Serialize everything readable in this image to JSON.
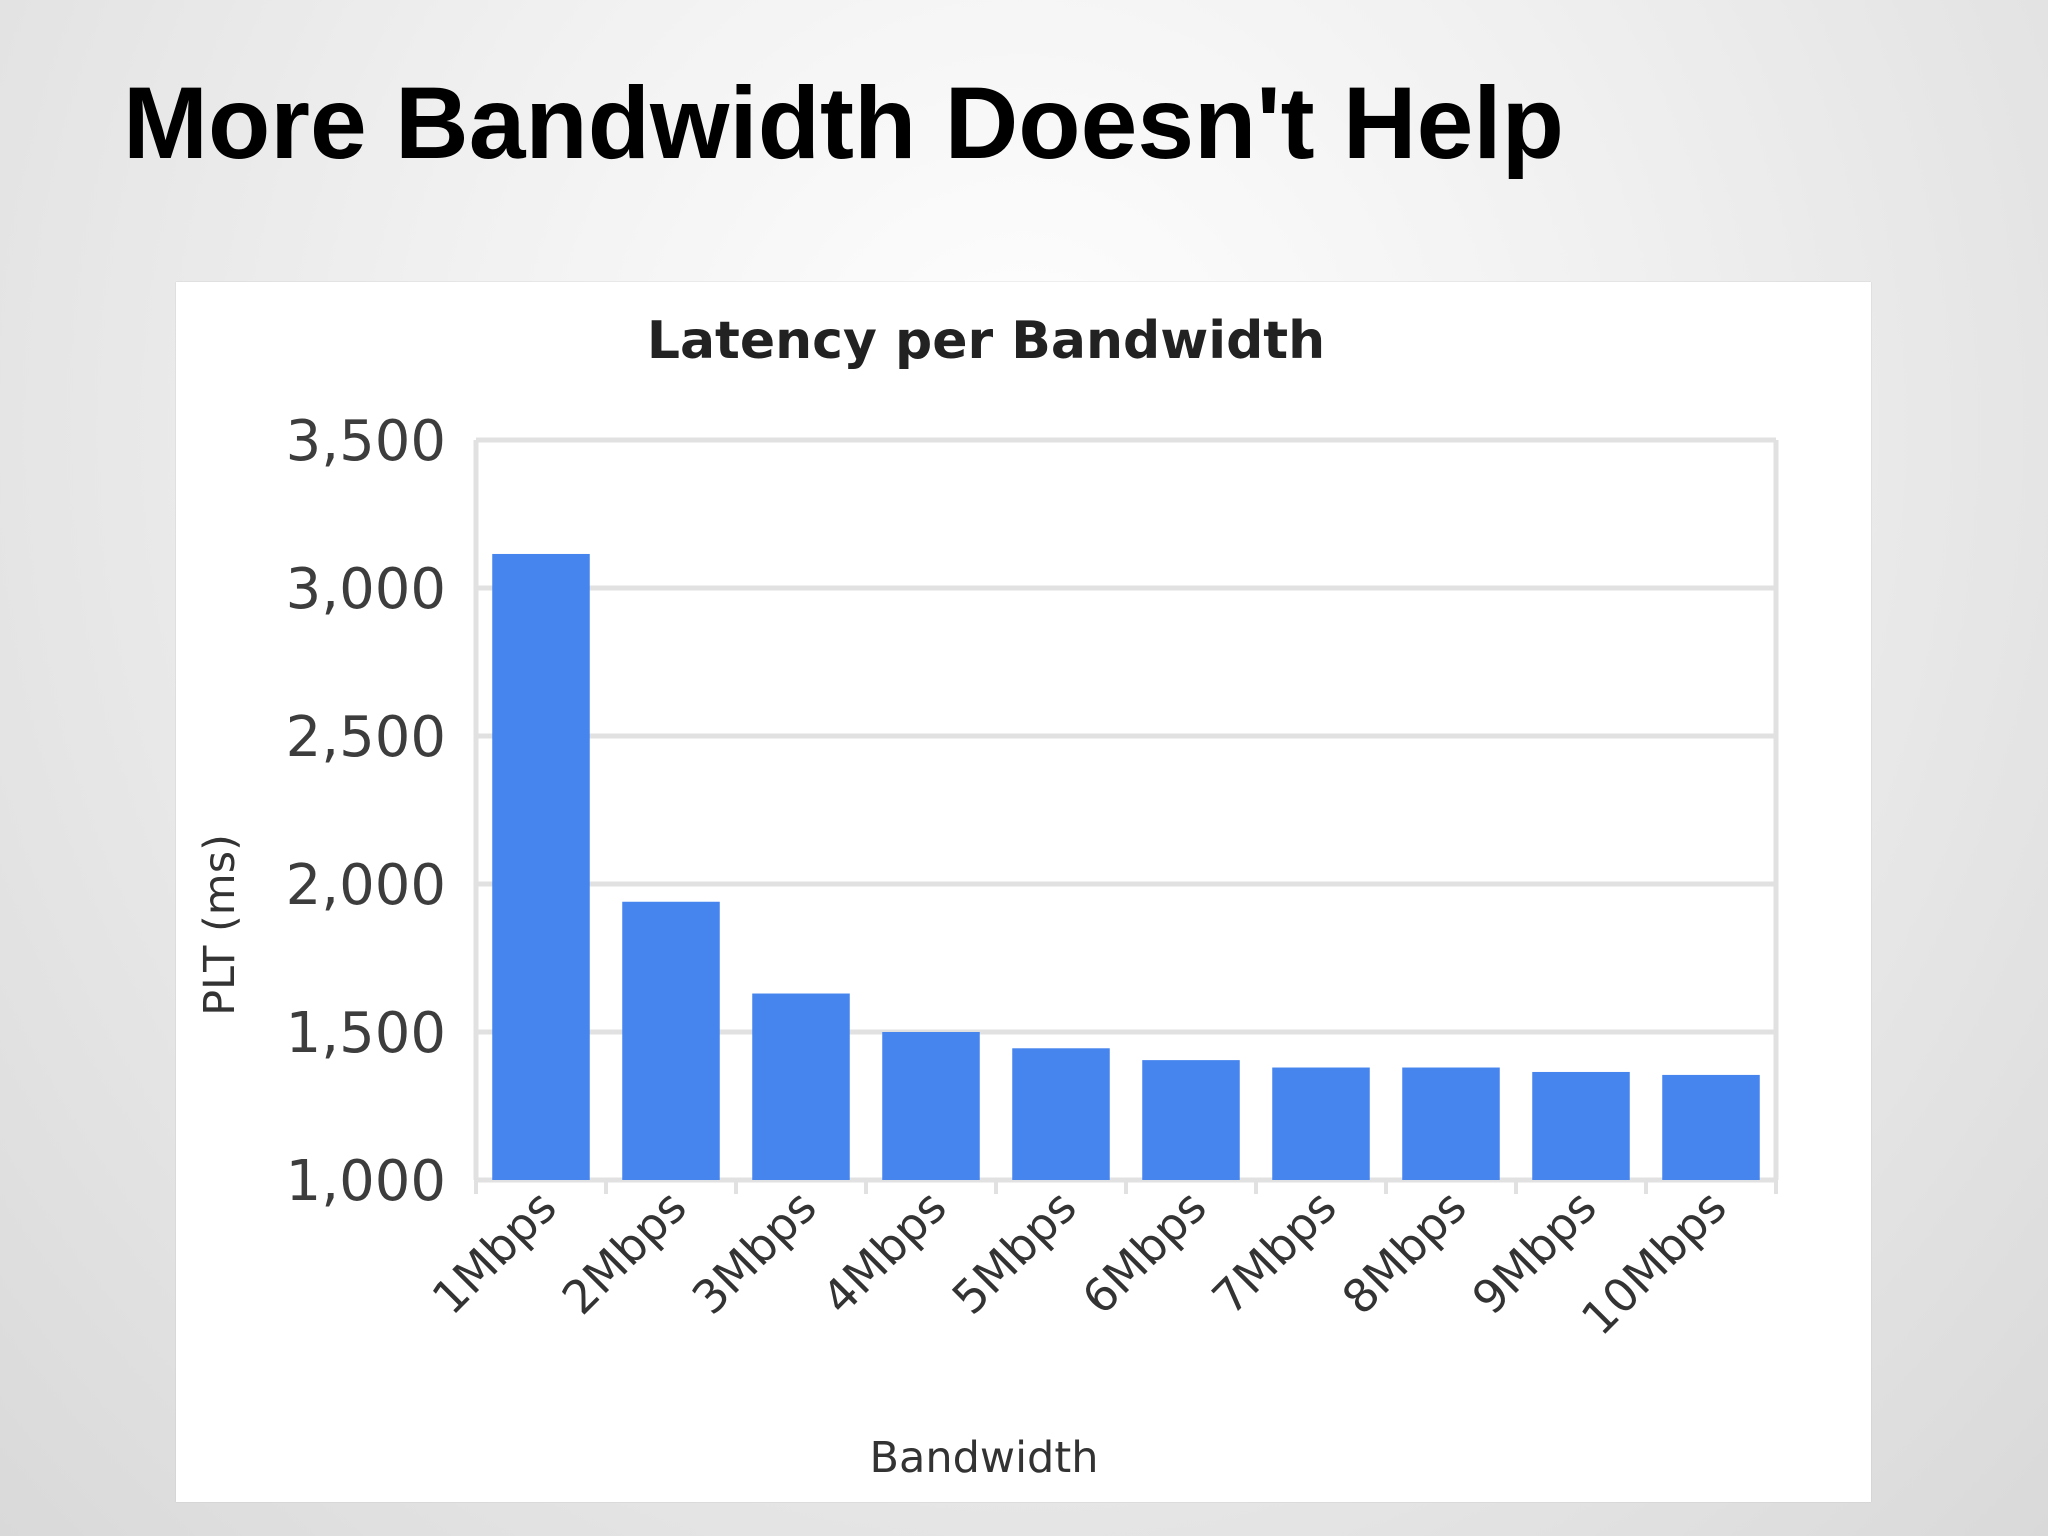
{
  "slide": {
    "title": "More Bandwidth Doesn't Help"
  },
  "chart_data": {
    "type": "bar",
    "title": "Latency per Bandwidth",
    "xlabel": "Bandwidth",
    "ylabel": "PLT (ms)",
    "ylim": [
      1000,
      3500
    ],
    "yticks": [
      1000,
      1500,
      2000,
      2500,
      3000,
      3500
    ],
    "ytick_labels": [
      "1,000",
      "1,500",
      "2,000",
      "2,500",
      "3,000",
      "3,500"
    ],
    "categories": [
      "1Mbps",
      "2Mbps",
      "3Mbps",
      "4Mbps",
      "5Mbps",
      "6Mbps",
      "7Mbps",
      "8Mbps",
      "9Mbps",
      "10Mbps"
    ],
    "values": [
      3115,
      1940,
      1630,
      1500,
      1445,
      1405,
      1380,
      1380,
      1365,
      1355
    ],
    "bar_color": "#4684ee",
    "grid": true,
    "legend": "none"
  }
}
